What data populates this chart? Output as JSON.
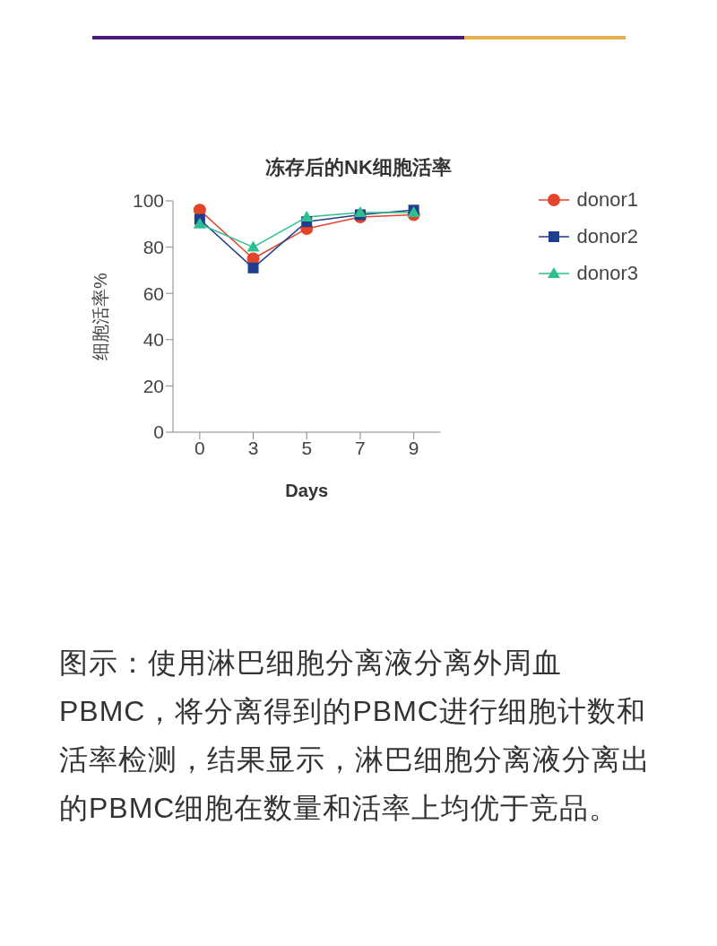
{
  "chart_data": {
    "type": "line",
    "title": "冻存后的NK细胞活率",
    "xlabel": "Days",
    "ylabel": "细胞活率%",
    "categories": [
      "0",
      "3",
      "5",
      "7",
      "9"
    ],
    "series": [
      {
        "name": "donor1",
        "color": "#e2452a",
        "marker": "circle",
        "values": [
          96,
          75,
          88,
          93,
          94
        ]
      },
      {
        "name": "donor2",
        "color": "#1f3e8f",
        "marker": "square",
        "values": [
          92,
          71,
          91,
          94,
          96
        ]
      },
      {
        "name": "donor3",
        "color": "#2fbf8f",
        "marker": "triangle",
        "values": [
          90,
          80,
          93,
          95,
          95
        ]
      }
    ],
    "ylim": [
      0,
      100
    ],
    "yticks": [
      0,
      20,
      40,
      60,
      80,
      100
    ],
    "grid": false,
    "legend": "top right",
    "line_style": "solid",
    "annotations": [
      "图示：使用淋巴细胞分离液分离外周血PBMC，将分离得到的PBMC进行细胞计数和活率检测，结果显示，淋巴细胞分离液分离出的PBMC细胞在数量和活率上均优于竞品。"
    ]
  }
}
